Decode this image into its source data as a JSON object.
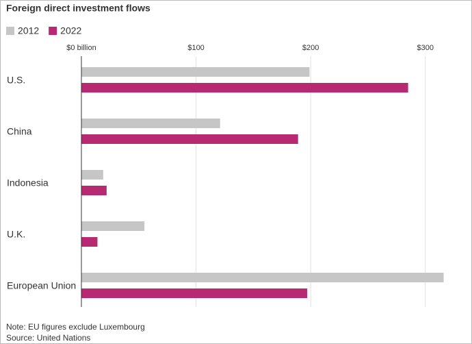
{
  "chart_data": {
    "type": "bar",
    "orientation": "horizontal",
    "title": "Foreign direct investment flows",
    "categories": [
      "U.S.",
      "China",
      "Indonesia",
      "U.K.",
      "European Union"
    ],
    "series": [
      {
        "name": "2012",
        "color": "#c6c6c6",
        "values": [
          199,
          121,
          19,
          55,
          316
        ]
      },
      {
        "name": "2022",
        "color": "#b72a72",
        "values": [
          285,
          189,
          22,
          14,
          197
        ]
      }
    ],
    "xlim": [
      0,
      330
    ],
    "xticks": [
      {
        "value": 0,
        "label": "$0 billion"
      },
      {
        "value": 100,
        "label": "$100"
      },
      {
        "value": 200,
        "label": "$200"
      },
      {
        "value": 300,
        "label": "$300"
      }
    ],
    "grid": true,
    "notes": [
      "Note: EU figures exclude Luxembourg",
      "Source: United Nations"
    ]
  }
}
